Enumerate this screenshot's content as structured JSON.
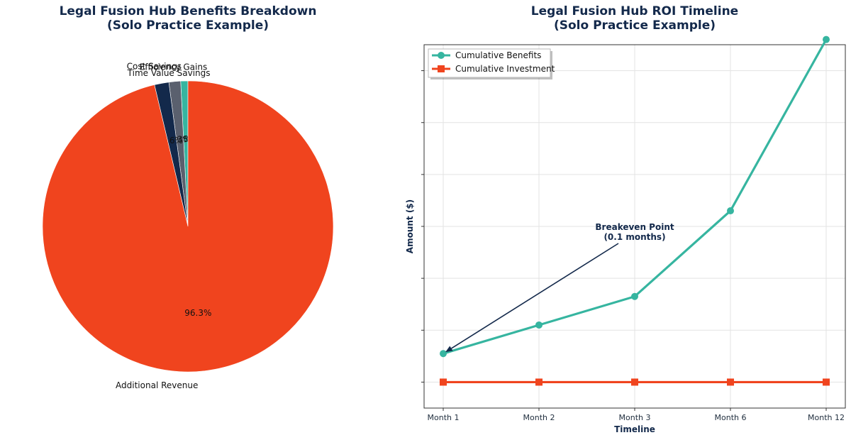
{
  "chart_data": [
    {
      "type": "pie",
      "title": "Legal Fusion Hub Benefits Breakdown",
      "subtitle": "(Solo Practice Example)",
      "slices": [
        {
          "name": "Cost Savings",
          "value": 0.8,
          "pct_label": "0.8%",
          "color": "#36b5a0"
        },
        {
          "name": "Efficiency Gains",
          "value": 1.3,
          "pct_label": "1.3%",
          "color": "#5a606e"
        },
        {
          "name": "Time Value Savings",
          "value": 1.6,
          "pct_label": "1.6%",
          "color": "#13294b"
        },
        {
          "name": "Additional Revenue",
          "value": 96.3,
          "pct_label": "96.3%",
          "color": "#f0441e"
        }
      ]
    },
    {
      "type": "line",
      "title": "Legal Fusion Hub ROI Timeline",
      "subtitle": "(Solo Practice Example)",
      "xlabel": "Timeline",
      "ylabel": "Amount ($)",
      "categories": [
        "Month 1",
        "Month 2",
        "Month 3",
        "Month 6",
        "Month 12"
      ],
      "ylim": [
        -1,
        13
      ],
      "grid": true,
      "legend_position": "top-left",
      "series": [
        {
          "name": "Cumulative Benefits",
          "values": [
            1.1,
            2.2,
            3.3,
            6.6,
            13.2
          ],
          "color": "#36b5a0",
          "marker": "circle"
        },
        {
          "name": "Cumulative Investment",
          "values": [
            0,
            0,
            0,
            0,
            0
          ],
          "color": "#f0441e",
          "marker": "square"
        }
      ],
      "annotation": {
        "line1": "Breakeven Point",
        "line2": "(0.1 months)",
        "target_category": "Month 1"
      }
    }
  ]
}
